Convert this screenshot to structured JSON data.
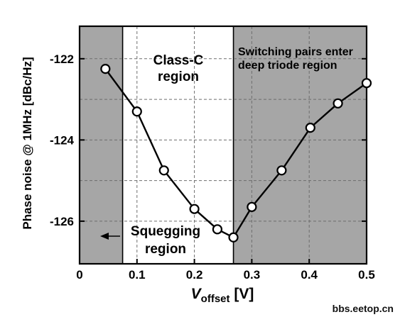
{
  "chart_data": {
    "type": "line",
    "xlabel": {
      "main": "V",
      "sub": "offset",
      "unit": " [V]"
    },
    "ylabel": "Phase noise @ 1MHz [dBc/Hz]",
    "xlim": [
      0,
      0.5
    ],
    "ylim": [
      -127.05,
      -121.2
    ],
    "xticks": [
      0,
      0.1,
      0.2,
      0.3,
      0.4,
      0.5
    ],
    "xtick_labels": [
      "0",
      "0.1",
      "0.2",
      "0.3",
      "0.4",
      "0.5"
    ],
    "yticks": [
      -122,
      -124,
      -126
    ],
    "ytick_labels": [
      "-122",
      "-124",
      "-126"
    ],
    "grid_y": [
      -122,
      -123,
      -124,
      -125,
      -126
    ],
    "grid_x": [
      0.1,
      0.2,
      0.3,
      0.4,
      0.5
    ],
    "grid": "dashed",
    "series": [
      {
        "x": [
          0.045,
          0.1,
          0.147,
          0.2,
          0.24,
          0.268,
          0.3,
          0.352,
          0.402,
          0.45,
          0.5
        ],
        "y": [
          -122.25,
          -123.3,
          -124.75,
          -125.7,
          -126.2,
          -126.4,
          -125.65,
          -124.75,
          -123.7,
          -123.1,
          -122.6
        ]
      }
    ],
    "regions": [
      {
        "x0": 0,
        "x1": 0.075,
        "color": "#a6a6a6"
      },
      {
        "x0": 0.268,
        "x1": 0.5,
        "color": "#a6a6a6"
      }
    ],
    "annotations": [
      {
        "lines": [
          "Class-C",
          "region"
        ]
      },
      {
        "lines": [
          "Switching pairs enter",
          "deep triode region"
        ]
      },
      {
        "lines": [
          "Squegging",
          "region"
        ]
      }
    ],
    "watermark": "bbs.eetop.cn"
  }
}
